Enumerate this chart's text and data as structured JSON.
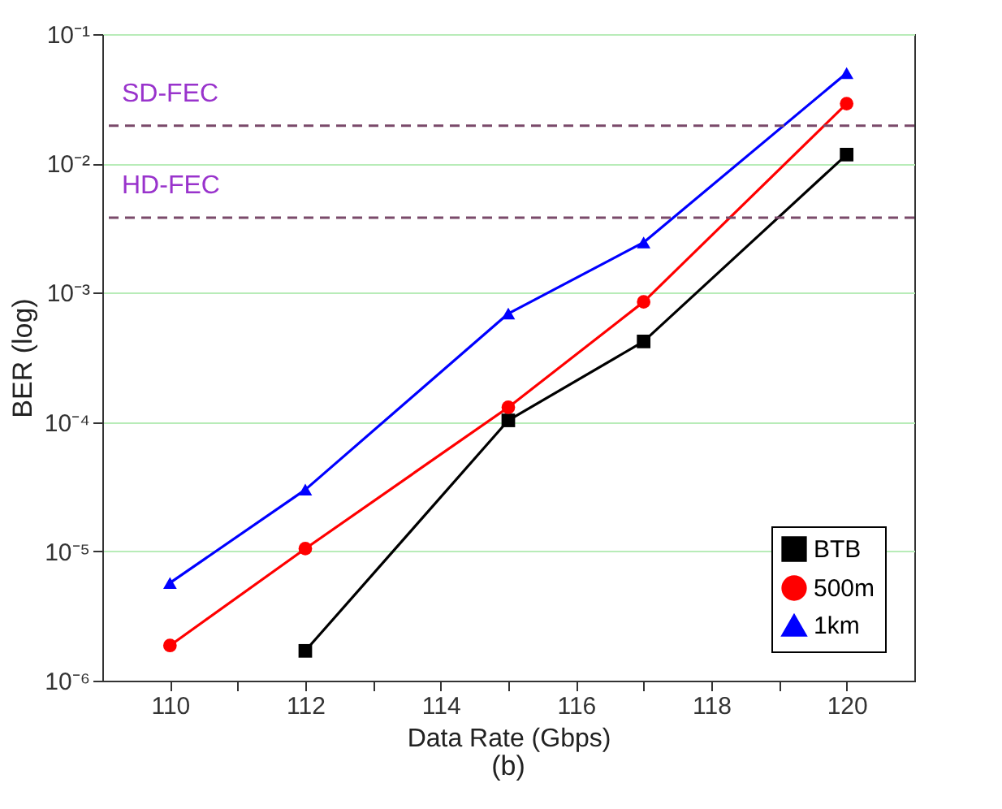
{
  "chart_data": {
    "type": "line",
    "xlabel": "Data Rate (Gbps)",
    "ylabel": "BER (log)",
    "annotations": [
      "(b)"
    ],
    "log": "y",
    "grid": "y",
    "legend": "bottom right",
    "line_style": "solid",
    "xlim": [
      109,
      121
    ],
    "xticks": [
      110,
      {
        "value": 111,
        "label": null
      },
      112,
      {
        "value": 113,
        "label": null
      },
      114,
      {
        "value": 115,
        "label": null
      },
      116,
      {
        "value": 117,
        "label": null
      },
      118,
      {
        "value": 119,
        "label": null
      },
      120
    ],
    "ylim": [
      1e-06,
      0.1
    ],
    "yticks": [
      {
        "value": 1e-06,
        "label": "10⁻⁶"
      },
      {
        "value": 1e-05,
        "label": "10⁻⁵"
      },
      {
        "value": 0.0001,
        "label": "10⁻⁴"
      },
      {
        "value": 0.001,
        "label": "10⁻³"
      },
      {
        "value": 0.01,
        "label": "10⁻²"
      },
      {
        "value": 0.1,
        "label": "10⁻¹"
      }
    ],
    "ref_lines": [
      {
        "axis": "y",
        "value": 0.0196,
        "label": "SD-FEC",
        "color": "#7a4a6a",
        "line_style": "dashed"
      },
      {
        "axis": "y",
        "value": 0.0038,
        "label": "HD-FEC",
        "color": "#7a4a6a",
        "line_style": "dashed"
      }
    ],
    "series": [
      {
        "name": "BTB",
        "color": "#000000",
        "marker": "square",
        "x": [
          112,
          115,
          117,
          120
        ],
        "values": [
          1.7e-06,
          0.000103,
          0.00042,
          0.0117
        ]
      },
      {
        "name": "500m",
        "color": "#ff0000",
        "marker": "circle",
        "x": [
          110,
          112,
          115,
          117,
          120
        ],
        "values": [
          1.87e-06,
          1.05e-05,
          0.00013,
          0.00085,
          0.029
        ]
      },
      {
        "name": "1km",
        "color": "#0000ff",
        "marker": "triangle",
        "x": [
          110,
          112,
          115,
          117,
          120
        ],
        "values": [
          5.7e-06,
          3e-05,
          0.00069,
          0.00245,
          0.05
        ]
      }
    ]
  }
}
